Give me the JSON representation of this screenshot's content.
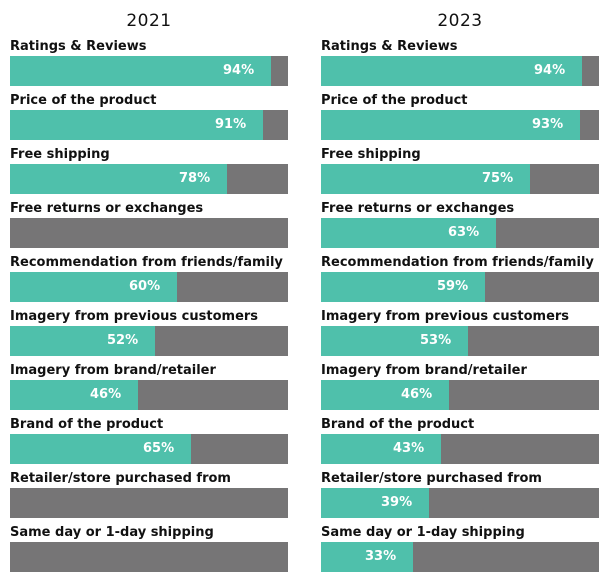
{
  "chart_data": [
    {
      "type": "bar",
      "orientation": "horizontal",
      "title": "2021",
      "xlim": [
        0,
        100
      ],
      "categories": [
        "Ratings & Reviews",
        "Price of the product",
        "Free shipping",
        "Free returns or exchanges",
        "Recommendation from friends/family",
        "Imagery from previous customers",
        "Imagery from brand/retailer",
        "Brand of the product",
        "Retailer/store purchased from",
        "Same day or 1-day shipping"
      ],
      "values": [
        94,
        91,
        78,
        null,
        60,
        52,
        46,
        65,
        null,
        null
      ],
      "value_labels": [
        "94%",
        "91%",
        "78%",
        "",
        "60%",
        "52%",
        "46%",
        "65%",
        "",
        ""
      ]
    },
    {
      "type": "bar",
      "orientation": "horizontal",
      "title": "2023",
      "xlim": [
        0,
        100
      ],
      "categories": [
        "Ratings & Reviews",
        "Price of the product",
        "Free shipping",
        "Free returns or exchanges",
        "Recommendation from friends/family",
        "Imagery from previous customers",
        "Imagery from brand/retailer",
        "Brand of the product",
        "Retailer/store purchased from",
        "Same day or 1-day shipping"
      ],
      "values": [
        94,
        93,
        75,
        63,
        59,
        53,
        46,
        43,
        39,
        33
      ],
      "value_labels": [
        "94%",
        "93%",
        "75%",
        "63%",
        "59%",
        "53%",
        "46%",
        "43%",
        "39%",
        "33%"
      ]
    }
  ],
  "colors": {
    "filled": "#4fc0ab",
    "remainder": "#767576",
    "value_text": "#ffffff"
  }
}
